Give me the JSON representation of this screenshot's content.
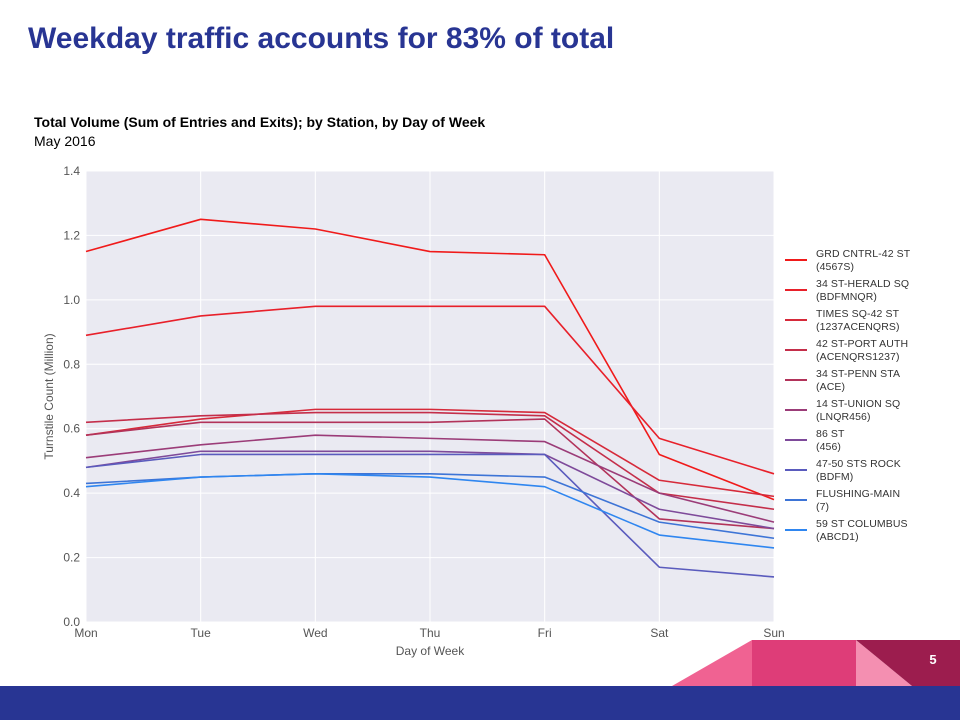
{
  "slide": {
    "title": "Weekday traffic accounts for 83% of total",
    "page_number": "5"
  },
  "colors": {
    "title": "#283593",
    "footer": "#283593",
    "plot_background": "#eaeaf2",
    "grid": "#ffffff"
  },
  "chart_data": {
    "type": "line",
    "title": "Total Volume (Sum of Entries and Exits); by Station, by Day of Week",
    "subtitle": "May 2016",
    "xlabel": "Day of Week",
    "ylabel": "Turnstile Count (Million)",
    "categories": [
      "Mon",
      "Tue",
      "Wed",
      "Thu",
      "Fri",
      "Sat",
      "Sun"
    ],
    "ylim": [
      0.0,
      1.4
    ],
    "yticks": [
      "0.0",
      "0.2",
      "0.4",
      "0.6",
      "0.8",
      "1.0",
      "1.2",
      "1.4"
    ],
    "grid": true,
    "legend_position": "right",
    "series": [
      {
        "name": "GRD CNTRL-42 ST\n(4567S)",
        "color": "#f01a1a",
        "values": [
          1.15,
          1.25,
          1.22,
          1.15,
          1.14,
          0.52,
          0.38
        ]
      },
      {
        "name": "34 ST-HERALD SQ\n(BDFMNQR)",
        "color": "#e8202a",
        "values": [
          0.89,
          0.95,
          0.98,
          0.98,
          0.98,
          0.57,
          0.46
        ]
      },
      {
        "name": "TIMES SQ-42 ST\n(1237ACENQRS)",
        "color": "#d62a3a",
        "values": [
          0.58,
          0.63,
          0.66,
          0.66,
          0.65,
          0.44,
          0.39
        ]
      },
      {
        "name": "42 ST-PORT AUTH\n(ACENQRS1237)",
        "color": "#c42e4a",
        "values": [
          0.62,
          0.64,
          0.65,
          0.65,
          0.64,
          0.4,
          0.35
        ]
      },
      {
        "name": "34 ST-PENN STA\n(ACE)",
        "color": "#b2335a",
        "values": [
          0.58,
          0.62,
          0.62,
          0.62,
          0.63,
          0.32,
          0.29
        ]
      },
      {
        "name": "14 ST-UNION SQ\n(LNQR456)",
        "color": "#9b3c78",
        "values": [
          0.51,
          0.55,
          0.58,
          0.57,
          0.56,
          0.4,
          0.31
        ]
      },
      {
        "name": "86 ST\n(456)",
        "color": "#7e4a9a",
        "values": [
          0.48,
          0.53,
          0.53,
          0.53,
          0.52,
          0.35,
          0.29
        ]
      },
      {
        "name": "47-50 STS ROCK\n(BDFM)",
        "color": "#5a5bbd",
        "values": [
          0.48,
          0.52,
          0.52,
          0.52,
          0.52,
          0.17,
          0.14
        ]
      },
      {
        "name": "FLUSHING-MAIN\n(7)",
        "color": "#3d74d6",
        "values": [
          0.43,
          0.45,
          0.46,
          0.46,
          0.45,
          0.31,
          0.26
        ]
      },
      {
        "name": "59 ST COLUMBUS\n(ABCD1)",
        "color": "#2f86f0",
        "values": [
          0.42,
          0.45,
          0.46,
          0.45,
          0.42,
          0.27,
          0.23
        ]
      }
    ]
  }
}
